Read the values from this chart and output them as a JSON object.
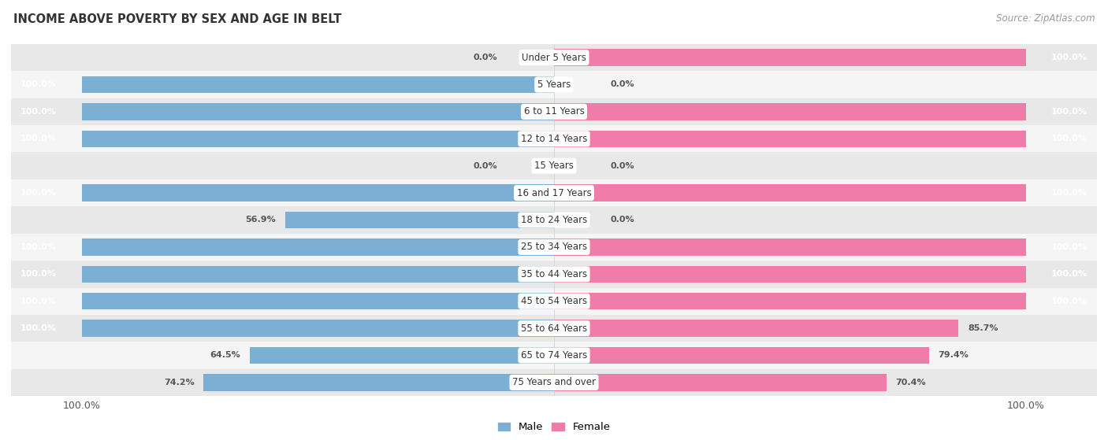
{
  "title": "INCOME ABOVE POVERTY BY SEX AND AGE IN BELT",
  "source": "Source: ZipAtlas.com",
  "categories": [
    "Under 5 Years",
    "5 Years",
    "6 to 11 Years",
    "12 to 14 Years",
    "15 Years",
    "16 and 17 Years",
    "18 to 24 Years",
    "25 to 34 Years",
    "35 to 44 Years",
    "45 to 54 Years",
    "55 to 64 Years",
    "65 to 74 Years",
    "75 Years and over"
  ],
  "male": [
    0.0,
    100.0,
    100.0,
    100.0,
    0.0,
    100.0,
    56.9,
    100.0,
    100.0,
    100.0,
    100.0,
    64.5,
    74.2
  ],
  "female": [
    100.0,
    0.0,
    100.0,
    100.0,
    0.0,
    100.0,
    0.0,
    100.0,
    100.0,
    100.0,
    85.7,
    79.4,
    70.4
  ],
  "male_color": "#7bafd4",
  "female_color": "#f07caa",
  "male_color_light": "#aecde8",
  "female_color_light": "#f8b4cc",
  "bg_row_dark": "#e8e8e8",
  "bg_row_light": "#f5f5f5",
  "bar_height": 0.62,
  "xlim": 115
}
